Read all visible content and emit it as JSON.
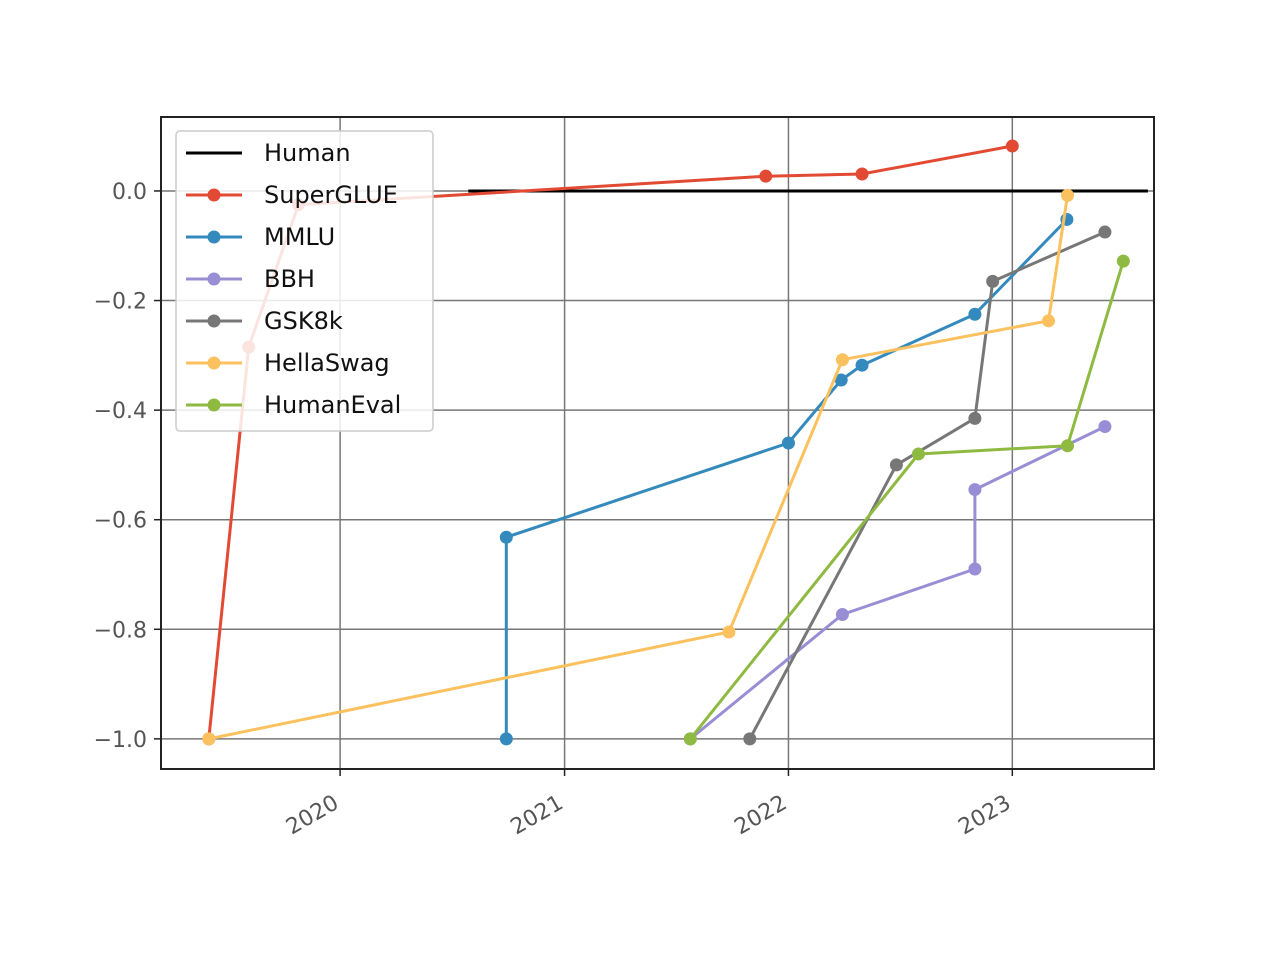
{
  "chart_data": {
    "type": "line",
    "title": "",
    "xlabel": "",
    "ylabel": "",
    "x_axis": "date",
    "xlim": [
      "2019-03-15",
      "2023-08-20"
    ],
    "ylim": [
      -1.055,
      0.135
    ],
    "grid": true,
    "legend_position": "top-left",
    "xticks": [
      {
        "label": "2020",
        "value": "2020-01-01"
      },
      {
        "label": "2021",
        "value": "2021-01-01"
      },
      {
        "label": "2022",
        "value": "2022-01-01"
      },
      {
        "label": "2023",
        "value": "2023-01-01"
      }
    ],
    "yticks": [
      {
        "label": "0.0",
        "value": 0.0
      },
      {
        "label": "−0.2",
        "value": -0.2
      },
      {
        "label": "−0.4",
        "value": -0.4
      },
      {
        "label": "−0.6",
        "value": -0.6
      },
      {
        "label": "−0.8",
        "value": -0.8
      },
      {
        "label": "−1.0",
        "value": -1.0
      }
    ],
    "series": [
      {
        "name": "Human",
        "color": "#000000",
        "marker": false,
        "points": [
          [
            "2020-07-28",
            0.0
          ],
          [
            "2023-08-10",
            0.0
          ]
        ]
      },
      {
        "name": "SuperGLUE",
        "color": "#e24a33",
        "marker": true,
        "points": [
          [
            "2019-06-01",
            -1.0
          ],
          [
            "2019-08-05",
            -0.285
          ],
          [
            "2019-10-25",
            -0.025
          ],
          [
            "2021-11-25",
            0.027
          ],
          [
            "2022-05-01",
            0.031
          ],
          [
            "2023-01-01",
            0.082
          ]
        ]
      },
      {
        "name": "MMLU",
        "color": "#348abd",
        "marker": true,
        "points": [
          [
            "2020-09-28",
            -1.0
          ],
          [
            "2020-09-28",
            -0.632
          ],
          [
            "2022-01-01",
            -0.46
          ],
          [
            "2022-03-28",
            -0.345
          ],
          [
            "2022-05-01",
            -0.318
          ],
          [
            "2022-11-01",
            -0.225
          ],
          [
            "2023-03-31",
            -0.052
          ]
        ]
      },
      {
        "name": "BBH",
        "color": "#988ed5",
        "marker": true,
        "points": [
          [
            "2021-07-25",
            -1.0
          ],
          [
            "2022-03-30",
            -0.773
          ],
          [
            "2022-11-01",
            -0.69
          ],
          [
            "2022-11-01",
            -0.545
          ],
          [
            "2023-06-01",
            -0.43
          ]
        ]
      },
      {
        "name": "GSK8k",
        "color": "#777777",
        "marker": true,
        "points": [
          [
            "2021-10-30",
            -1.0
          ],
          [
            "2022-06-26",
            -0.5
          ],
          [
            "2022-11-01",
            -0.415
          ],
          [
            "2022-11-30",
            -0.165
          ],
          [
            "2023-06-01",
            -0.075
          ]
        ]
      },
      {
        "name": "HellaSwag",
        "color": "#fbc15e",
        "marker": true,
        "points": [
          [
            "2019-06-01",
            -1.0
          ],
          [
            "2021-09-26",
            -0.805
          ],
          [
            "2022-03-30",
            -0.308
          ],
          [
            "2023-03-01",
            -0.237
          ],
          [
            "2023-04-01",
            -0.008
          ]
        ]
      },
      {
        "name": "HumanEval",
        "color": "#8eba42",
        "marker": true,
        "points": [
          [
            "2021-07-25",
            -1.0
          ],
          [
            "2022-08-01",
            -0.48
          ],
          [
            "2023-04-01",
            -0.465
          ],
          [
            "2023-07-01",
            -0.128
          ]
        ]
      }
    ]
  }
}
